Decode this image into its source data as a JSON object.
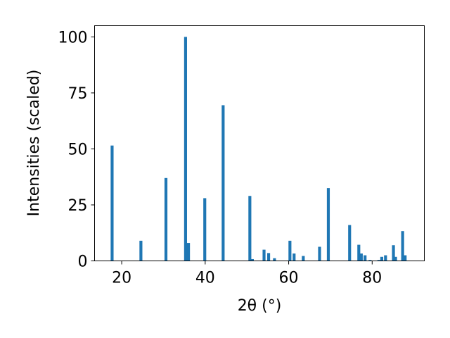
{
  "chart_data": {
    "type": "bar",
    "xlabel": "2θ (°)",
    "ylabel": "Intensities (scaled)",
    "xlim": [
      13.5,
      92.5
    ],
    "ylim": [
      0,
      105
    ],
    "xticks": [
      20,
      40,
      60,
      80
    ],
    "yticks": [
      0,
      25,
      50,
      75,
      100
    ],
    "grid": false,
    "bar_color": "#1f77b4",
    "bar_width_deg": 0.7,
    "x": [
      17.7,
      24.6,
      30.6,
      35.3,
      36.0,
      39.9,
      44.3,
      50.7,
      51.3,
      54.1,
      55.2,
      56.6,
      60.3,
      61.3,
      63.5,
      67.4,
      69.5,
      74.6,
      76.8,
      77.4,
      78.3,
      79.5,
      81.6,
      82.3,
      83.2,
      85.1,
      85.6,
      87.3,
      87.9
    ],
    "values": [
      51.5,
      9.0,
      37.0,
      100.0,
      8.0,
      28.0,
      69.5,
      29.0,
      0.8,
      5.0,
      3.5,
      1.2,
      9.0,
      3.3,
      2.2,
      6.3,
      32.5,
      16.0,
      7.2,
      3.3,
      2.5,
      0.4,
      0.4,
      1.8,
      2.5,
      7.0,
      1.8,
      13.3,
      2.5
    ]
  }
}
